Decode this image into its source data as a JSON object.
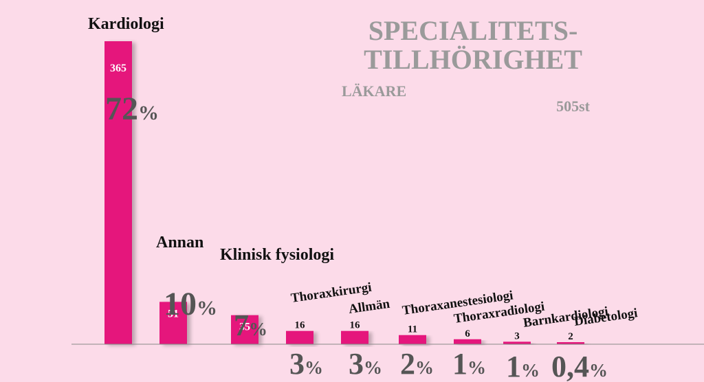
{
  "chart_data": {
    "type": "bar",
    "title": "SPECIALITETS-",
    "title_line2": "TILLHÖRIGHET",
    "subtitle": "LÄKARE",
    "total_label": "505st",
    "colors": {
      "bar": "#e5127b",
      "title": "#9a9a9a",
      "pct": "#555555",
      "label": "#111111",
      "background": "#fcdbe9"
    },
    "categories": [
      "Kardiologi",
      "Annan",
      "Klinisk fysiologi",
      "Thoraxkirurgi",
      "Allmän",
      "Thoraxanestesiologi",
      "Thoraxradiologi",
      "Barnkardiologi",
      "Diabetologi"
    ],
    "values": [
      365,
      51,
      35,
      16,
      16,
      11,
      6,
      3,
      2
    ],
    "percent_numbers": [
      "72",
      "10",
      "7",
      "3",
      "3",
      "2",
      "1",
      "1",
      "0,4"
    ],
    "percent_sign": "%",
    "ylim": [
      0,
      365
    ]
  }
}
